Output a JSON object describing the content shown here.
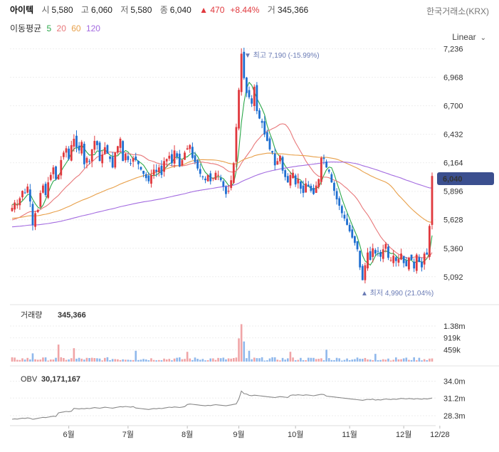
{
  "header": {
    "name": "아이텍",
    "open_label": "시",
    "open": "5,580",
    "high_label": "고",
    "high": "6,060",
    "low_label": "저",
    "low": "5,580",
    "close_label": "종",
    "close": "6,040",
    "change": "▲ 470",
    "change_pct": "+8.44%",
    "volume_label": "거",
    "volume": "345,366",
    "exchange": "한국거래소(KRX)"
  },
  "ma_legend": {
    "label": "이동평균",
    "items": [
      {
        "period": "5",
        "color": "#2ba84a"
      },
      {
        "period": "20",
        "color": "#e8787a"
      },
      {
        "period": "60",
        "color": "#e8a04a"
      },
      {
        "period": "120",
        "color": "#a36be0"
      }
    ]
  },
  "scale_button": "Linear",
  "colors": {
    "up": "#e0393e",
    "down": "#1f6fd1",
    "obv": "#888888",
    "price_tag": "#3b4f8f"
  },
  "chart_data": [
    {
      "type": "candlestick",
      "ylim": [
        4950,
        7280
      ],
      "y_ticks": [
        "7,236",
        "6,968",
        "6,700",
        "6,432",
        "6,164",
        "5,896",
        "5,628",
        "5,360",
        "5,092"
      ],
      "x_ticks": [
        "6월",
        "7월",
        "8월",
        "9월",
        "10월",
        "11월",
        "12월",
        "12/28"
      ],
      "last_price_tag": "6,040",
      "high_annotation": "▼ 최고 7,190 (-15.99%)",
      "low_annotation": "▲ 최저 4,990 (21.04%)",
      "closes": [
        5740,
        5790,
        5770,
        5830,
        5900,
        5880,
        5940,
        5800,
        5580,
        5690,
        5720,
        5880,
        5950,
        5860,
        5980,
        6050,
        6120,
        6010,
        6050,
        6190,
        6260,
        6300,
        6200,
        6330,
        6390,
        6310,
        6280,
        6360,
        6150,
        6210,
        6180,
        6290,
        6370,
        6330,
        6180,
        6240,
        6310,
        6250,
        6200,
        6120,
        6260,
        6320,
        6390,
        6180,
        6250,
        6190,
        6160,
        6210,
        6190,
        6150,
        6100,
        6060,
        6020,
        5990,
        6050,
        6100,
        6080,
        6120,
        6050,
        6180,
        6200,
        6230,
        6160,
        6280,
        6220,
        6130,
        6190,
        6260,
        6300,
        6330,
        6210,
        6170,
        6110,
        6060,
        6030,
        6000,
        6050,
        5990,
        6020,
        6070,
        6050,
        6000,
        5940,
        5870,
        5900,
        6000,
        6160,
        6500,
        6850,
        7190,
        6960,
        6820,
        6780,
        6720,
        6880,
        6650,
        6580,
        6540,
        6430,
        6370,
        6290,
        6260,
        6140,
        6180,
        6230,
        6090,
        6030,
        5980,
        6050,
        6070,
        5960,
        6010,
        5920,
        5880,
        5970,
        5940,
        5900,
        5870,
        5950,
        6010,
        6210,
        6200,
        6120,
        6080,
        5980,
        5900,
        5820,
        5760,
        5690,
        5640,
        5580,
        5520,
        5460,
        5410,
        5350,
        5180,
        5060,
        5200,
        5320,
        5250,
        5360,
        5310,
        5330,
        5280,
        5350,
        5400,
        5270,
        5250,
        5290,
        5240,
        5260,
        5310,
        5220,
        5190,
        5270,
        5250,
        5170,
        5300,
        5230,
        5180,
        5310,
        5300,
        5570,
        6040
      ],
      "ma_periods": [
        5,
        20,
        60,
        120
      ],
      "ma_start_values": [
        5780,
        5620,
        5640,
        5560
      ]
    },
    {
      "type": "bar",
      "title": "거래량",
      "last_value": "345,366",
      "y_ticks": [
        "1.38m",
        "919k",
        "459k"
      ],
      "ylim": [
        0,
        1600000
      ],
      "spikes": [
        {
          "day": 8,
          "value": 320000
        },
        {
          "day": 18,
          "value": 660000
        },
        {
          "day": 24,
          "value": 520000
        },
        {
          "day": 48,
          "value": 420000
        },
        {
          "day": 68,
          "value": 380000
        },
        {
          "day": 88,
          "value": 900000
        },
        {
          "day": 89,
          "value": 1450000
        },
        {
          "day": 90,
          "value": 780000
        },
        {
          "day": 92,
          "value": 420000
        },
        {
          "day": 108,
          "value": 380000
        },
        {
          "day": 122,
          "value": 460000
        },
        {
          "day": 141,
          "value": 300000
        },
        {
          "day": 166,
          "value": 345366
        }
      ]
    },
    {
      "type": "line",
      "title": "OBV",
      "last_value": "30,171,167",
      "y_ticks": [
        "34.0m",
        "31.2m",
        "28.3m"
      ],
      "ylim": [
        27000000,
        35000000
      ]
    }
  ]
}
